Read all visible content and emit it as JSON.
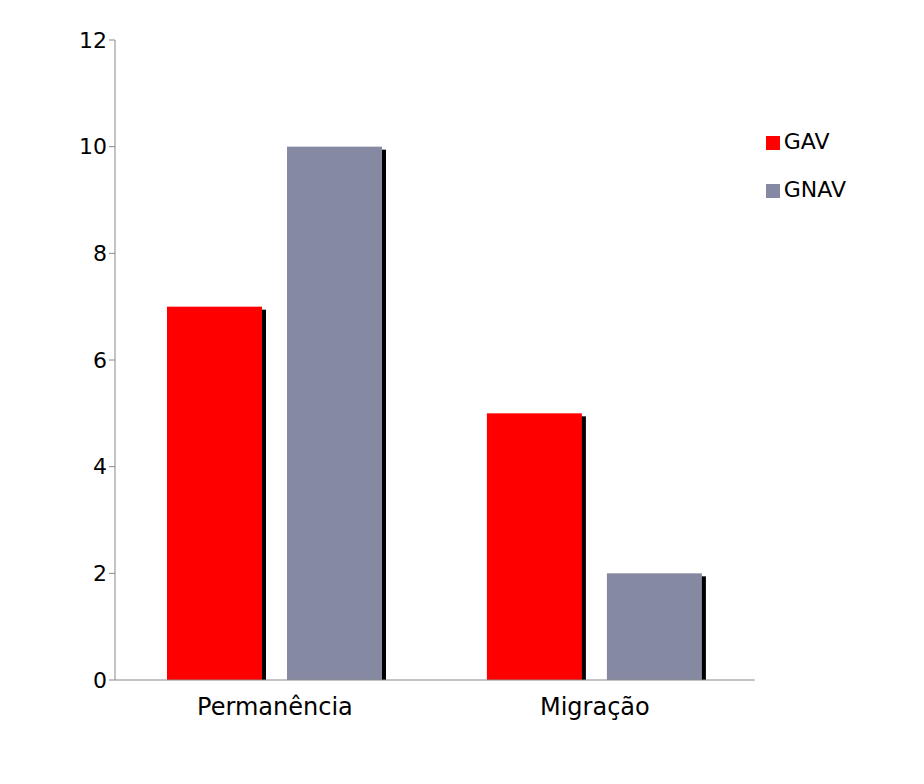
{
  "chart_data": {
    "type": "bar",
    "categories": [
      "Permanência",
      "Migração"
    ],
    "series": [
      {
        "name": "GAV",
        "color": "#ff0000",
        "values": [
          7,
          5
        ]
      },
      {
        "name": "GNAV",
        "color": "#8589a2",
        "values": [
          10,
          2
        ]
      }
    ],
    "ylim": [
      0,
      12
    ],
    "yticks": [
      0,
      2,
      4,
      6,
      8,
      10,
      12
    ],
    "grid": false,
    "legend": "upper right"
  }
}
